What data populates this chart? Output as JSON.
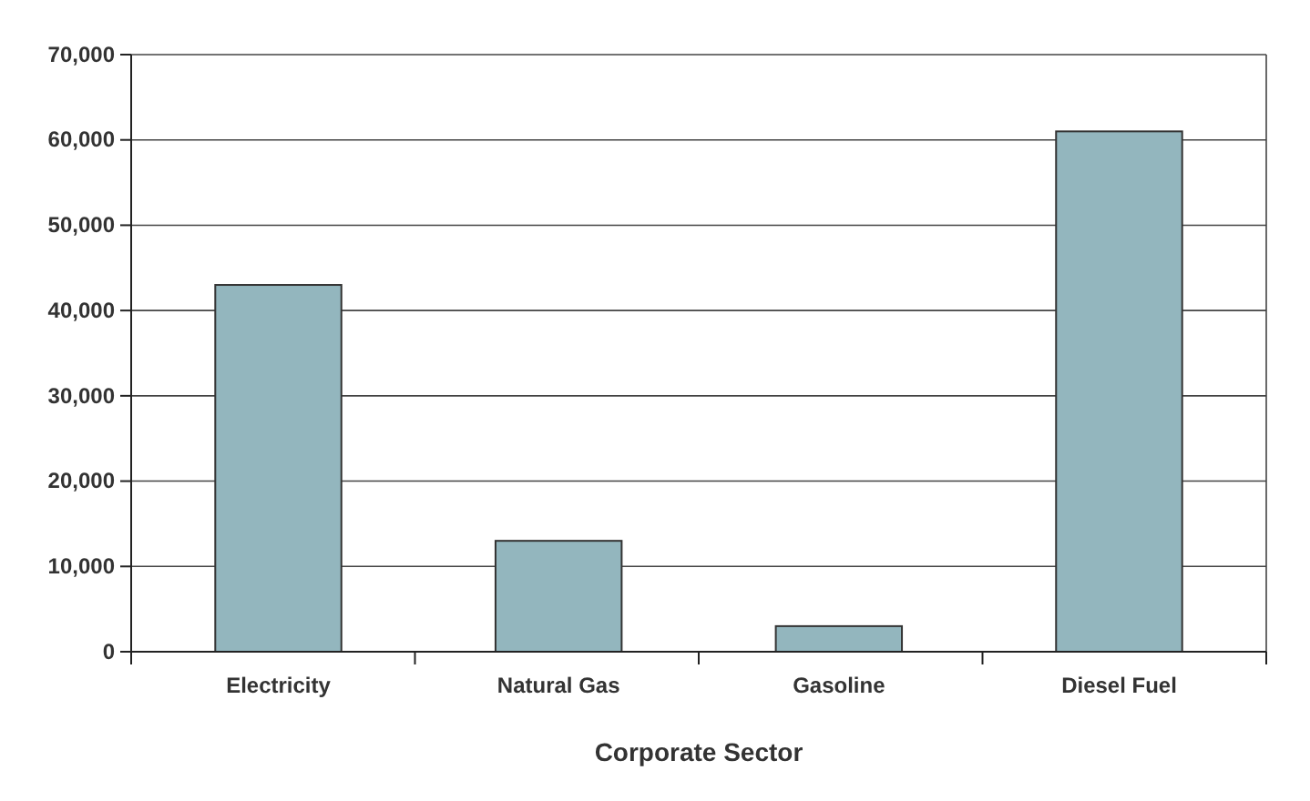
{
  "chart_data": {
    "type": "bar",
    "xlabel": "Corporate Sector",
    "categories": [
      "Electricity",
      "Natural Gas",
      "Gasoline",
      "Diesel Fuel"
    ],
    "values": [
      43000,
      13000,
      3000,
      61000
    ],
    "color": "#93b6be",
    "ylim": [
      0,
      70000
    ],
    "yticks": [
      {
        "value": 0,
        "label": "0"
      },
      {
        "value": 10000,
        "label": "10,000"
      },
      {
        "value": 20000,
        "label": "20,000"
      },
      {
        "value": 30000,
        "label": "30,000"
      },
      {
        "value": 40000,
        "label": "40,000"
      },
      {
        "value": 50000,
        "label": "50,000"
      },
      {
        "value": 60000,
        "label": "60,000"
      },
      {
        "value": 70000,
        "label": "70,000"
      }
    ],
    "grid": "y"
  }
}
